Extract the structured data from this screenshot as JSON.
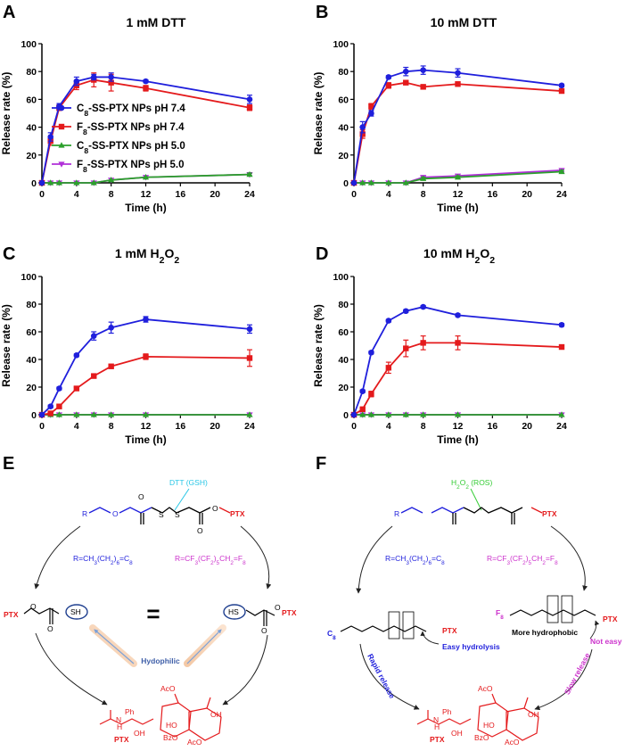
{
  "colors": {
    "blue": "#1f1fdc",
    "red": "#e41a1c",
    "green": "#2ca02c",
    "purple": "#b030d8",
    "magenta": "#cc33cc",
    "cyan": "#27c6e6",
    "brightgreen": "#33cc33"
  },
  "chart_data": [
    {
      "panel": "A",
      "title": "1 mM DTT",
      "type": "line",
      "xlabel": "Time (h)",
      "ylabel": "Release rate (%)",
      "xlim": [
        0,
        24
      ],
      "ylim": [
        0,
        100
      ],
      "xticks": [
        0,
        4,
        8,
        12,
        16,
        20,
        24
      ],
      "yticks": [
        0,
        20,
        40,
        60,
        80,
        100
      ],
      "legend": [
        "C8-SS-PTX NPs pH 7.4",
        "F8-SS-PTX NPs pH 7.4",
        "C8-SS-PTX NPs pH 5.0",
        "F8-SS-PTX NPs pH 5.0"
      ],
      "series": [
        {
          "name": "C8-SS-PTX NPs pH 7.4",
          "color": "blue",
          "marker": "circle",
          "x": [
            0,
            1,
            2,
            4,
            6,
            8,
            12,
            24
          ],
          "y": [
            0,
            33,
            55,
            73,
            76,
            76,
            73,
            60
          ],
          "err": [
            0,
            3,
            2,
            3,
            2,
            3,
            1,
            3
          ]
        },
        {
          "name": "F8-SS-PTX NPs pH 7.4",
          "color": "red",
          "marker": "square",
          "x": [
            0,
            1,
            2,
            4,
            6,
            8,
            12,
            24
          ],
          "y": [
            0,
            30,
            54,
            70,
            74,
            72,
            68,
            54
          ],
          "err": [
            0,
            3,
            2,
            3,
            5,
            6,
            2,
            2
          ]
        },
        {
          "name": "C8-SS-PTX NPs pH 5.0",
          "color": "green",
          "marker": "triangle",
          "x": [
            0,
            1,
            2,
            4,
            6,
            8,
            12,
            24
          ],
          "y": [
            0,
            0,
            0,
            0,
            0,
            2,
            4,
            6
          ],
          "err": [
            0,
            0,
            0,
            0,
            0,
            0,
            0,
            1
          ]
        },
        {
          "name": "F8-SS-PTX NPs pH 5.0",
          "color": "purple",
          "marker": "tri-down",
          "x": [
            0,
            1,
            2,
            4,
            6,
            8,
            12,
            24
          ],
          "y": [
            0,
            0,
            0,
            0,
            0,
            2,
            4,
            6
          ],
          "err": [
            0,
            0,
            0,
            0,
            0,
            0,
            0,
            1
          ]
        }
      ]
    },
    {
      "panel": "B",
      "title": "10 mM DTT",
      "type": "line",
      "xlabel": "Time (h)",
      "ylabel": "Release rate (%)",
      "xlim": [
        0,
        24
      ],
      "ylim": [
        0,
        100
      ],
      "xticks": [
        0,
        4,
        8,
        12,
        16,
        20,
        24
      ],
      "yticks": [
        0,
        20,
        40,
        60,
        80,
        100
      ],
      "series": [
        {
          "name": "C8-SS-PTX NPs pH 7.4",
          "color": "blue",
          "marker": "circle",
          "x": [
            0,
            1,
            2,
            4,
            6,
            8,
            12,
            24
          ],
          "y": [
            0,
            40,
            50,
            76,
            80,
            81,
            79,
            70
          ],
          "err": [
            0,
            4,
            2,
            1,
            3,
            3,
            3,
            1
          ]
        },
        {
          "name": "F8-SS-PTX NPs pH 7.4",
          "color": "red",
          "marker": "square",
          "x": [
            0,
            1,
            2,
            4,
            6,
            8,
            12,
            24
          ],
          "y": [
            0,
            35,
            55,
            70,
            72,
            69,
            71,
            66
          ],
          "err": [
            0,
            3,
            2,
            2,
            1,
            1,
            1,
            1
          ]
        },
        {
          "name": "C8-SS-PTX NPs pH 5.0",
          "color": "green",
          "marker": "triangle",
          "x": [
            0,
            1,
            2,
            4,
            6,
            8,
            12,
            24
          ],
          "y": [
            0,
            0,
            0,
            0,
            0,
            3,
            4,
            8
          ],
          "err": [
            0,
            0,
            0,
            0,
            0,
            1,
            1,
            1
          ]
        },
        {
          "name": "F8-SS-PTX NPs pH 5.0",
          "color": "purple",
          "marker": "tri-down",
          "x": [
            0,
            1,
            2,
            4,
            6,
            8,
            12,
            24
          ],
          "y": [
            0,
            0,
            0,
            0,
            0,
            4,
            5,
            9
          ],
          "err": [
            0,
            0,
            0,
            0,
            0,
            1,
            1,
            1
          ]
        }
      ]
    },
    {
      "panel": "C",
      "title": "1 mM H2O2",
      "type": "line",
      "xlabel": "Time (h)",
      "ylabel": "Release rate (%)",
      "xlim": [
        0,
        24
      ],
      "ylim": [
        0,
        100
      ],
      "xticks": [
        0,
        4,
        8,
        12,
        16,
        20,
        24
      ],
      "yticks": [
        0,
        20,
        40,
        60,
        80,
        100
      ],
      "series": [
        {
          "name": "C8-SS-PTX NPs pH 7.4",
          "color": "blue",
          "marker": "circle",
          "x": [
            0,
            1,
            2,
            4,
            6,
            8,
            12,
            24
          ],
          "y": [
            0,
            6,
            19,
            43,
            57,
            63,
            69,
            62
          ],
          "err": [
            0,
            1,
            1,
            1,
            3,
            4,
            2,
            3
          ]
        },
        {
          "name": "F8-SS-PTX NPs pH 7.4",
          "color": "red",
          "marker": "square",
          "x": [
            0,
            1,
            2,
            4,
            6,
            8,
            12,
            24
          ],
          "y": [
            0,
            1,
            6,
            19,
            28,
            35,
            42,
            41
          ],
          "err": [
            0,
            0,
            1,
            1,
            1,
            1,
            2,
            6
          ]
        },
        {
          "name": "C8-SS-PTX NPs pH 5.0",
          "color": "green",
          "marker": "triangle",
          "x": [
            0,
            1,
            2,
            4,
            6,
            8,
            12,
            24
          ],
          "y": [
            0,
            0,
            0,
            0,
            0,
            0,
            0,
            0
          ],
          "err": [
            0,
            0,
            0,
            0,
            0,
            0,
            0,
            0
          ]
        },
        {
          "name": "F8-SS-PTX NPs pH 5.0",
          "color": "purple",
          "marker": "tri-down",
          "x": [
            0,
            1,
            2,
            4,
            6,
            8,
            12,
            24
          ],
          "y": [
            0,
            0,
            0,
            0,
            0,
            0,
            0,
            0
          ],
          "err": [
            0,
            0,
            0,
            0,
            0,
            0,
            0,
            0
          ]
        }
      ]
    },
    {
      "panel": "D",
      "title": "10 mM H2O2",
      "type": "line",
      "xlabel": "Time (h)",
      "ylabel": "Release rate (%)",
      "xlim": [
        0,
        24
      ],
      "ylim": [
        0,
        100
      ],
      "xticks": [
        0,
        4,
        8,
        12,
        16,
        20,
        24
      ],
      "yticks": [
        0,
        20,
        40,
        60,
        80,
        100
      ],
      "series": [
        {
          "name": "C8-SS-PTX NPs pH 7.4",
          "color": "blue",
          "marker": "circle",
          "x": [
            0,
            1,
            2,
            4,
            6,
            8,
            12,
            24
          ],
          "y": [
            0,
            17,
            45,
            68,
            75,
            78,
            72,
            65
          ],
          "err": [
            0,
            1,
            1,
            1,
            1,
            1,
            1,
            1
          ]
        },
        {
          "name": "F8-SS-PTX NPs pH 7.4",
          "color": "red",
          "marker": "square",
          "x": [
            0,
            1,
            2,
            4,
            6,
            8,
            12,
            24
          ],
          "y": [
            0,
            4,
            15,
            34,
            48,
            52,
            52,
            49
          ],
          "err": [
            0,
            1,
            2,
            4,
            6,
            5,
            5,
            1
          ]
        },
        {
          "name": "C8-SS-PTX NPs pH 5.0",
          "color": "green",
          "marker": "triangle",
          "x": [
            0,
            1,
            2,
            4,
            6,
            8,
            12,
            24
          ],
          "y": [
            0,
            0,
            0,
            0,
            0,
            0,
            0,
            0
          ],
          "err": [
            0,
            0,
            0,
            0,
            0,
            0,
            0,
            0
          ]
        },
        {
          "name": "F8-SS-PTX NPs pH 5.0",
          "color": "purple",
          "marker": "tri-down",
          "x": [
            0,
            1,
            2,
            4,
            6,
            8,
            12,
            24
          ],
          "y": [
            0,
            0,
            0,
            0,
            0,
            0,
            0,
            0
          ],
          "err": [
            0,
            0,
            0,
            0,
            0,
            0,
            0,
            0
          ]
        }
      ]
    }
  ],
  "scheme_E": {
    "label": "E",
    "trigger": "DTT (GSH)",
    "r_c8": "R=CH3(CH2)6=C8",
    "r_f8": "R=CF3(CF2)5CH2=F8",
    "r": "R",
    "o": "O",
    "s": "S",
    "ptx": "PTX",
    "sh": "SH",
    "hs": "HS",
    "equals": "=",
    "hydrophilic": "Hydophilic",
    "ptx_bottom": "PTX",
    "aco": "AcO",
    "oh": "OH",
    "ph": "Ph",
    "nh": "N",
    "h": "H",
    "bzo": "BzO",
    "ho": "HO",
    "aco_bottom": "AcO"
  },
  "scheme_F": {
    "label": "F",
    "trigger": "H2O2 (ROS)",
    "r_c8": "R=CH3(CH2)6=C8",
    "r_f8": "R=CF3(CF2)5CH2=F8",
    "r": "R",
    "ptx": "PTX",
    "c8": "C8",
    "f8": "F8",
    "easy": "Easy hydrolysis",
    "more": "More hydrophobic",
    "noteasy": "Not easy",
    "rapid": "Rapid release",
    "slow": "Slow release",
    "ptx_bottom": "PTX",
    "aco": "AcO",
    "oh": "OH",
    "ph": "Ph",
    "nh": "N",
    "h": "H",
    "bzo": "BzO",
    "ho": "HO",
    "aco_bottom": "AcO"
  }
}
